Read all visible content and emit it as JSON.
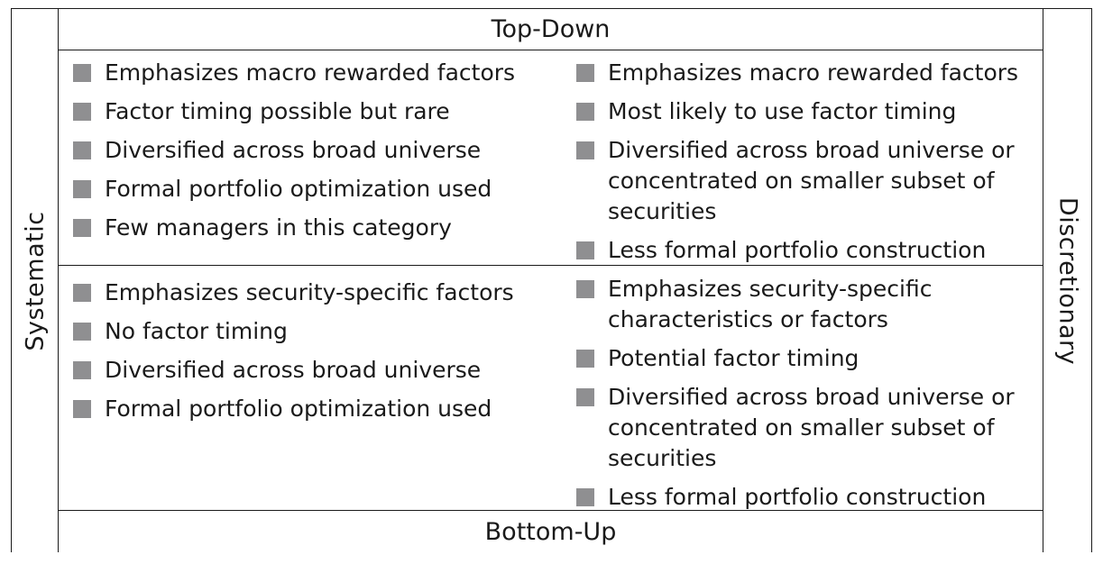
{
  "top_label": "Top-Down",
  "bottom_label": "Bottom-Up",
  "left_label": "Systematic",
  "right_label": "Discretionary",
  "bullet_color": "#8f8f91",
  "quadrants": {
    "top_left": [
      "Emphasizes macro rewarded factors",
      "Factor timing possible but rare",
      "Diversified across broad universe",
      "Formal portfolio optimization used",
      "Few managers in this category"
    ],
    "top_right": [
      "Emphasizes macro rewarded factors",
      "Most likely to use factor timing",
      "Diversified across broad universe or concentrated on smaller subset of securities",
      "Less formal portfolio construction"
    ],
    "bottom_left": [
      "Emphasizes security-specific factors",
      "No factor timing",
      "Diversified across broad universe",
      "Formal portfolio optimization used"
    ],
    "bottom_right": [
      "Emphasizes security-specific characteristics or factors",
      "Potential factor timing",
      "Diversified across broad universe or concentrated on smaller subset of securities",
      "Less formal portfolio construction"
    ]
  }
}
